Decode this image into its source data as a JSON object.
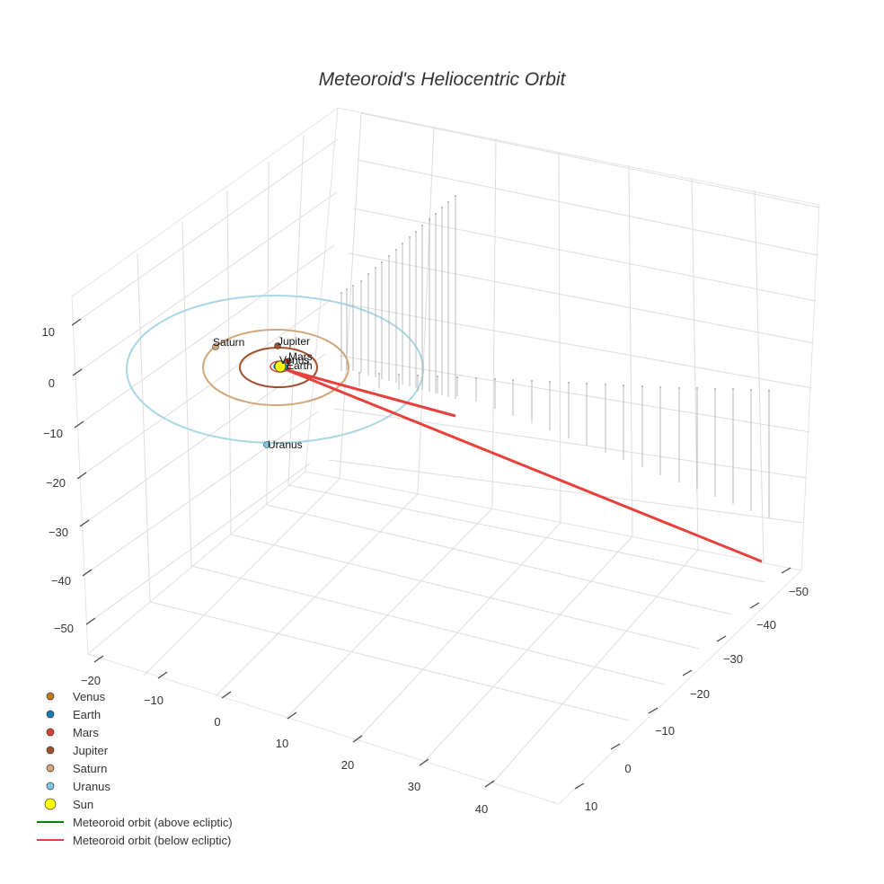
{
  "chart_data": {
    "type": "scatter3d",
    "title": "Meteoroid's Heliocentric Orbit",
    "axes": {
      "x": {
        "ticks": [
          "−20",
          "−10",
          "0",
          "10",
          "20",
          "30",
          "40"
        ]
      },
      "y": {
        "ticks": [
          "−50",
          "−40",
          "−30",
          "−20",
          "−10",
          "0",
          "10"
        ]
      },
      "z": {
        "ticks": [
          "10",
          "0",
          "−10",
          "−20",
          "−30",
          "−40",
          "−50"
        ]
      }
    },
    "planets": [
      {
        "name": "Venus",
        "color": "#c8741c",
        "label": "Venus"
      },
      {
        "name": "Earth",
        "color": "#1f77b4",
        "label": "Earth"
      },
      {
        "name": "Mars",
        "color": "#d9472b",
        "label": "Mars"
      },
      {
        "name": "Jupiter",
        "color": "#a0522d",
        "label": "Jupiter"
      },
      {
        "name": "Saturn",
        "color": "#d2a679",
        "label": "Saturn"
      },
      {
        "name": "Uranus",
        "color": "#7ec8e3",
        "label": "Uranus"
      }
    ],
    "sun": {
      "name": "Sun",
      "color": "#ffff00"
    },
    "legend": [
      {
        "label": "Venus",
        "kind": "marker",
        "color": "#c8741c",
        "size": "small"
      },
      {
        "label": "Earth",
        "kind": "marker",
        "color": "#1f77b4",
        "size": "small"
      },
      {
        "label": "Mars",
        "kind": "marker",
        "color": "#d9472b",
        "size": "small"
      },
      {
        "label": "Jupiter",
        "kind": "marker",
        "color": "#a0522d",
        "size": "small"
      },
      {
        "label": "Saturn",
        "kind": "marker",
        "color": "#d2a679",
        "size": "small"
      },
      {
        "label": "Uranus",
        "kind": "marker",
        "color": "#7ec8e3",
        "size": "small"
      },
      {
        "label": "Sun",
        "kind": "marker",
        "color": "#ffff00",
        "size": "large"
      },
      {
        "label": "Meteoroid orbit (above ecliptic)",
        "kind": "line",
        "color": "#008000"
      },
      {
        "label": "Meteoroid orbit (below ecliptic)",
        "kind": "line",
        "color": "#e8403a"
      }
    ],
    "meteoroid_orbit": {
      "above_ecliptic_color": "#008000",
      "below_ecliptic_color": "#e8403a"
    },
    "drop_lines_color": "#aaaaaa",
    "legend_position": "bottom-left"
  }
}
